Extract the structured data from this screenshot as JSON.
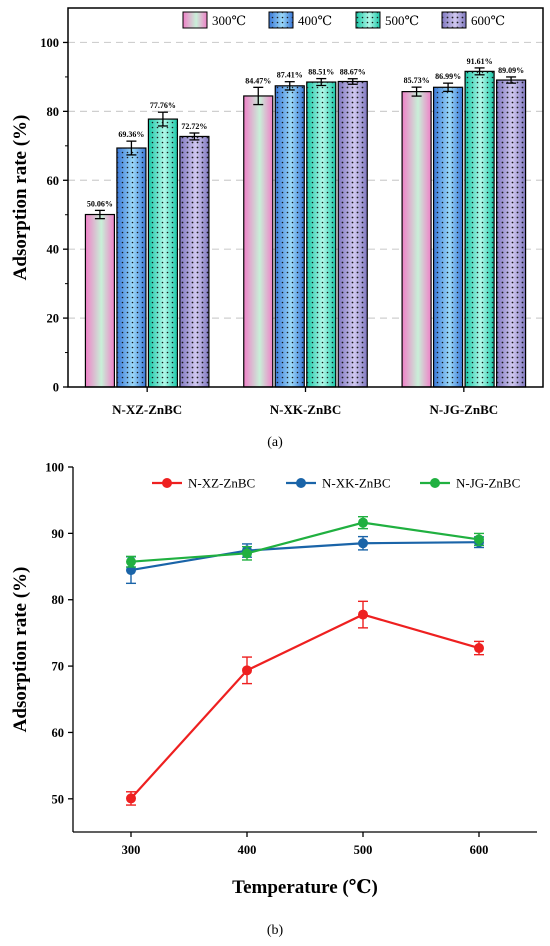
{
  "chart_data": [
    {
      "type": "bar",
      "panel_label": "(a)",
      "title": "",
      "xlabel": "",
      "ylabel": "Adsorption rate (%)",
      "ylim": [
        0,
        110
      ],
      "yticks": [
        0,
        20,
        40,
        60,
        80,
        100
      ],
      "grid": "dashed horizontal",
      "legend_position": "top-right",
      "categories": [
        "N-XZ-ZnBC",
        "N-XK-ZnBC",
        "N-JG-ZnBC"
      ],
      "series": [
        {
          "name": "300℃",
          "values": [
            50.06,
            84.47,
            85.73
          ],
          "errors": [
            1.2,
            2.5,
            1.3
          ],
          "labels": [
            "50.06%",
            "84.47%",
            "85.73%"
          ],
          "color": "#f080c8",
          "color2": "#c8f0d8"
        },
        {
          "name": "400℃",
          "values": [
            69.36,
            87.41,
            86.99
          ],
          "errors": [
            2.0,
            1.2,
            1.2
          ],
          "labels": [
            "69.36%",
            "87.41%",
            "86.99%"
          ],
          "color": "#3a78d8",
          "color2": "#9ad8f8"
        },
        {
          "name": "500℃",
          "values": [
            77.76,
            88.51,
            91.61
          ],
          "errors": [
            2.0,
            1.0,
            1.0
          ],
          "labels": [
            "77.76%",
            "88.51%",
            "91.61%"
          ],
          "color": "#19c8a8",
          "color2": "#b0f8e8"
        },
        {
          "name": "600℃",
          "values": [
            72.72,
            88.67,
            89.09
          ],
          "errors": [
            1.0,
            0.8,
            0.9
          ],
          "labels": [
            "72.72%",
            "88.67%",
            "89.09%"
          ],
          "color": "#8078c0",
          "color2": "#d0c8f0"
        }
      ]
    },
    {
      "type": "line",
      "panel_label": "(b)",
      "title": "",
      "xlabel": "Temperature (℃)",
      "ylabel": "Adsorption rate (%)",
      "xlim": [
        250,
        650
      ],
      "ylim": [
        45,
        100
      ],
      "xticks": [
        300,
        400,
        500,
        600
      ],
      "yticks": [
        50,
        60,
        70,
        80,
        90,
        100
      ],
      "legend_position": "top",
      "x": [
        300,
        400,
        500,
        600
      ],
      "series": [
        {
          "name": "N-XZ-ZnBC",
          "values": [
            50.06,
            69.36,
            77.76,
            72.72
          ],
          "errors": [
            1.0,
            2.0,
            2.0,
            1.0
          ],
          "color": "#ee2020"
        },
        {
          "name": "N-XK-ZnBC",
          "values": [
            84.47,
            87.41,
            88.51,
            88.67
          ],
          "errors": [
            2.0,
            1.0,
            1.0,
            0.8
          ],
          "color": "#1a64a8"
        },
        {
          "name": "N-JG-ZnBC",
          "values": [
            85.73,
            86.99,
            91.61,
            89.09
          ],
          "errors": [
            0.8,
            1.0,
            0.9,
            0.9
          ],
          "color": "#20b040"
        }
      ]
    }
  ]
}
